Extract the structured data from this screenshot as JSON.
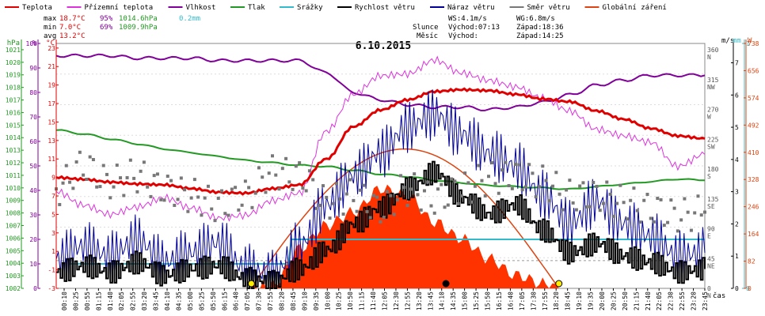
{
  "legend": [
    {
      "label": "Teplota",
      "color": "#e00000"
    },
    {
      "label": "Přízemní teplota",
      "color": "#dd33dd"
    },
    {
      "label": "Vlhkost",
      "color": "#800099"
    },
    {
      "label": "Tlak",
      "color": "#229922"
    },
    {
      "label": "Srážky",
      "color": "#33bbcc"
    },
    {
      "label": "Rychlost větru",
      "color": "#000000"
    },
    {
      "label": "Náraz větru",
      "color": "#000099"
    },
    {
      "label": "Směr větru",
      "color": "#777777"
    },
    {
      "label": "Globální záření",
      "color": "#dd4411"
    }
  ],
  "stats": {
    "max_label": "max",
    "max_temp": "18.7°C",
    "max_hum": "95%",
    "max_press": "1014.6hPa",
    "max_rain": "0.2mm",
    "min_label": "min",
    "min_temp": "7.0°C",
    "min_hum": "69%",
    "min_press": "1009.9hPa",
    "avg_label": "avg",
    "avg_temp": "13.2°C"
  },
  "wind_info": {
    "ws": "WS:4.1m/s",
    "wg": "WG:6.8m/s"
  },
  "sun": {
    "label": "Slunce",
    "rise": "Východ:07:13",
    "set": "Západ:18:36"
  },
  "moon": {
    "label": "Měsíc",
    "rise": "Východ:",
    "set": "Západ:14:25"
  },
  "colors": {
    "temp": "#e00000",
    "ground": "#dd33dd",
    "hum": "#800099",
    "press": "#229922",
    "rain": "#33bbcc",
    "wind": "#000000",
    "gust": "#000099",
    "dir": "#777777",
    "solar": "#dd4411",
    "solar_fill": "#ff3300",
    "axis_hpa": "#229922",
    "axis_pct": "#800099",
    "axis_c": "#e00000",
    "axis_mm": "#33bbcc",
    "axis_w": "#dd4411"
  },
  "chart_data": {
    "type": "line",
    "title": "6.10.2015",
    "xlabel": "čas",
    "x_ticks": [
      "00:10",
      "00:25",
      "00:55",
      "01:15",
      "01:40",
      "02:05",
      "02:55",
      "03:20",
      "03:45",
      "04:10",
      "04:35",
      "05:00",
      "05:25",
      "05:50",
      "06:15",
      "06:40",
      "07:05",
      "07:30",
      "07:55",
      "08:20",
      "08:45",
      "09:10",
      "09:35",
      "10:00",
      "10:25",
      "10:50",
      "11:15",
      "11:40",
      "12:05",
      "12:30",
      "12:55",
      "13:20",
      "13:45",
      "14:10",
      "14:35",
      "15:00",
      "15:25",
      "15:50",
      "16:15",
      "16:40",
      "17:05",
      "17:30",
      "17:55",
      "18:20",
      "18:45",
      "19:10",
      "19:35",
      "20:00",
      "20:25",
      "20:50",
      "21:15",
      "21:40",
      "22:05",
      "22:30",
      "22:55",
      "23:20",
      "23:45"
    ],
    "axes": {
      "hpa": {
        "label": "hPa",
        "ticks": [
          "1021",
          "1020",
          "1019",
          "1018",
          "1017",
          "1016",
          "1015",
          "1014",
          "1013",
          "1012",
          "1011",
          "1010",
          "1009",
          "1008",
          "1007",
          "1006",
          "1005",
          "1004",
          "1003",
          "1002"
        ],
        "range": [
          1002,
          1021.5
        ]
      },
      "pct": {
        "label": "%",
        "ticks": [
          "100",
          "90",
          "80",
          "70",
          "60",
          "50",
          "40",
          "30",
          "20",
          "10",
          "0"
        ],
        "range": [
          0,
          100
        ]
      },
      "temp": {
        "label": "°C",
        "ticks": [
          "23",
          "21",
          "19",
          "17",
          "15",
          "13",
          "11",
          "9",
          "7",
          "5",
          "3",
          "1",
          "-1",
          "-3"
        ],
        "range": [
          -3,
          23.5
        ]
      },
      "wind": {
        "label": "m/s",
        "ticks": [
          "7",
          "6",
          "5",
          "4",
          "3",
          "2",
          "1",
          "0"
        ],
        "range": [
          0,
          7.6
        ]
      },
      "rain": {
        "label": "mm",
        "ticks": [
          "1",
          "0"
        ],
        "range": [
          0,
          1
        ]
      },
      "solar": {
        "label": "W",
        "ticks": [
          "738",
          "656",
          "574",
          "492",
          "410",
          "328",
          "246",
          "164",
          "82",
          "0"
        ],
        "range": [
          0,
          738
        ]
      },
      "dir": {
        "labels": [
          "360 N",
          "315 NW",
          "270 W",
          "225 SW",
          "180 S",
          "135 SE",
          "90 E",
          "45 NE",
          "0 N"
        ]
      }
    },
    "series": [
      {
        "name": "Teplota",
        "unit": "°C",
        "x": [
          0,
          1,
          2,
          3,
          4,
          5,
          6,
          7,
          8,
          9,
          10,
          11,
          12,
          13,
          14,
          15,
          16,
          17,
          18,
          19,
          20,
          21,
          22,
          23,
          24
        ],
        "y": [
          9.0,
          8.8,
          8.5,
          8.3,
          8.2,
          7.8,
          7.4,
          7.3,
          7.8,
          8.2,
          11.0,
          14.5,
          16.3,
          17.4,
          18.3,
          18.5,
          18.4,
          18.0,
          17.5,
          17.2,
          16.2,
          15.3,
          14.3,
          13.5,
          13.2
        ]
      },
      {
        "name": "Přízemní teplota",
        "unit": "°C",
        "x": [
          0,
          1,
          2,
          3,
          4,
          5,
          6,
          7,
          8,
          9,
          10,
          11,
          12,
          13,
          14,
          15,
          16,
          17,
          18,
          19,
          20,
          21,
          22,
          23,
          24
        ],
        "y": [
          7.5,
          6.0,
          5.0,
          5.8,
          6.8,
          5.7,
          4.6,
          4.9,
          6.5,
          7.3,
          14.0,
          18.0,
          20.0,
          20.2,
          21.7,
          20.3,
          19.5,
          18.8,
          17.6,
          16.2,
          14.2,
          13.5,
          12.8,
          10.2,
          11.5
        ]
      },
      {
        "name": "Vlhkost",
        "unit": "%",
        "x": [
          0,
          1,
          2,
          3,
          4,
          5,
          6,
          7,
          8,
          9,
          10,
          11,
          12,
          13,
          14,
          15,
          16,
          17,
          18,
          19,
          20,
          21,
          22,
          23,
          24
        ],
        "y": [
          95,
          95,
          95,
          94,
          94,
          94,
          93,
          93,
          93,
          93,
          88,
          80,
          77,
          75,
          74,
          74,
          73,
          74,
          76,
          79,
          83,
          85,
          87,
          87,
          87
        ]
      },
      {
        "name": "Tlak",
        "unit": "hPa",
        "x": [
          0,
          1,
          2,
          3,
          4,
          5,
          6,
          7,
          8,
          9,
          10,
          11,
          12,
          13,
          14,
          15,
          16,
          17,
          18,
          19,
          20,
          21,
          22,
          23,
          24
        ],
        "y": [
          1014.6,
          1014.3,
          1013.9,
          1013.5,
          1013.1,
          1012.8,
          1012.5,
          1012.2,
          1012.0,
          1011.8,
          1011.7,
          1011.4,
          1011.1,
          1010.9,
          1010.6,
          1010.4,
          1010.2,
          1010.1,
          1010.0,
          1009.9,
          1010.1,
          1010.3,
          1010.5,
          1010.7,
          1010.6
        ]
      },
      {
        "name": "Rychlost větru",
        "unit": "m/s",
        "x": [
          0,
          1,
          2,
          3,
          4,
          5,
          6,
          7,
          8,
          9,
          10,
          11,
          12,
          13,
          14,
          15,
          16,
          17,
          18,
          19,
          20,
          21,
          22,
          23,
          24
        ],
        "y": [
          0.5,
          0.7,
          0.5,
          0.8,
          0.4,
          0.6,
          0.7,
          0.3,
          0.2,
          0.6,
          1.2,
          2.0,
          2.5,
          3.1,
          3.6,
          2.8,
          2.3,
          2.6,
          1.8,
          1.1,
          1.4,
          1.0,
          0.8,
          0.5,
          0.6
        ]
      },
      {
        "name": "Náraz větru",
        "unit": "m/s",
        "x": [
          0,
          1,
          2,
          3,
          4,
          5,
          6,
          7,
          8,
          9,
          10,
          11,
          12,
          13,
          14,
          15,
          16,
          17,
          18,
          19,
          20,
          21,
          22,
          23,
          24
        ],
        "y": [
          0.9,
          1.3,
          1.0,
          1.5,
          0.8,
          1.1,
          1.4,
          0.6,
          0.4,
          1.3,
          2.6,
          3.5,
          4.2,
          5.0,
          5.4,
          4.8,
          4.2,
          3.8,
          2.9,
          2.0,
          2.7,
          2.0,
          1.6,
          1.0,
          1.1
        ]
      },
      {
        "name": "Globální záření",
        "unit": "W",
        "x": [
          7.2,
          8,
          9,
          10,
          11,
          12,
          13,
          14,
          15,
          16,
          17,
          18,
          18.6
        ],
        "y": [
          0,
          10,
          120,
          190,
          230,
          300,
          280,
          200,
          150,
          90,
          40,
          15,
          0
        ]
      },
      {
        "name": "Srážky",
        "unit": "mm",
        "x": [
          0.5,
          8.6,
          8.7,
          24
        ],
        "y": [
          0.1,
          0.1,
          0.2,
          0.2
        ]
      },
      {
        "name": "Směr větru",
        "unit": "°",
        "x": [
          0,
          1,
          2,
          3,
          4,
          5,
          6,
          7,
          8,
          9,
          10,
          11,
          12,
          13,
          14,
          15,
          16,
          17,
          18,
          19,
          20,
          21,
          22,
          23,
          24
        ],
        "y": [
          150,
          185,
          160,
          170,
          150,
          140,
          125,
          140,
          175,
          170,
          130,
          140,
          120,
          150,
          135,
          150,
          165,
          170,
          160,
          140,
          140,
          130,
          120,
          110,
          115
        ]
      }
    ]
  }
}
